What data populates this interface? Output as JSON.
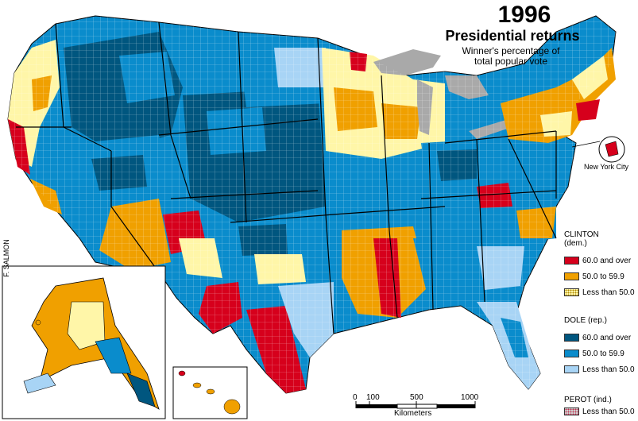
{
  "title": {
    "year": "1996",
    "main": "Presidential returns",
    "subtitle_line1": "Winner's percentage of",
    "subtitle_line2": "total popular vote"
  },
  "credit": "F. SALMON",
  "inset_label": "New York City",
  "legend": {
    "clinton": {
      "heading_line1": "CLINTON",
      "heading_line2": "(dem.)",
      "items": [
        {
          "label": "60.0 and over",
          "color": "#d6001c"
        },
        {
          "label": "50.0 to 59.9",
          "color": "#f0a000"
        },
        {
          "label": "Less than 50.0",
          "color": "#fff6a8"
        }
      ]
    },
    "dole": {
      "heading": "DOLE (rep.)",
      "items": [
        {
          "label": "60.0 and over",
          "color": "#00567f"
        },
        {
          "label": "50.0 to 59.9",
          "color": "#0a8ccc"
        },
        {
          "label": "Less than 50.0",
          "color": "#a8d4f5"
        }
      ]
    },
    "perot": {
      "heading": "PEROT (ind.)",
      "items": [
        {
          "label": "Less than 50.0",
          "color": "#d0d0d0"
        }
      ]
    }
  },
  "scale": {
    "ticks": [
      "0",
      "100",
      "500",
      "1000"
    ],
    "unit": "Kilometers"
  },
  "colors": {
    "lakes": "#a9a9a9",
    "border": "#000000"
  }
}
